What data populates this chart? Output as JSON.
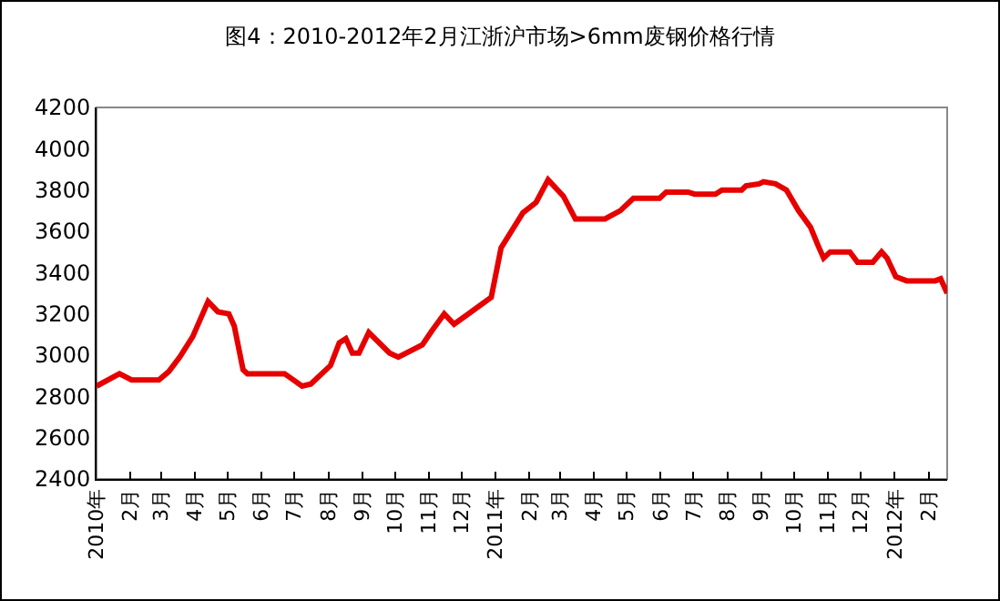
{
  "chart_data": {
    "type": "line",
    "title": "图4：2010-2012年2月江浙沪市场>6mm废钢价格行情",
    "x": [
      "2010-01-01",
      "2010-01-22",
      "2010-02-02",
      "2010-02-27",
      "2010-03-08",
      "2010-03-18",
      "2010-03-30",
      "2010-04-13",
      "2010-04-22",
      "2010-05-02",
      "2010-05-07",
      "2010-05-15",
      "2010-05-19",
      "2010-06-22",
      "2010-07-08",
      "2010-07-16",
      "2010-08-03",
      "2010-08-11",
      "2010-08-17",
      "2010-08-23",
      "2010-08-29",
      "2010-09-07",
      "2010-09-26",
      "2010-10-04",
      "2010-10-26",
      "2010-11-04",
      "2010-11-15",
      "2010-11-24",
      "2010-12-28",
      "2011-01-06",
      "2011-01-26",
      "2011-02-07",
      "2011-02-18",
      "2011-03-04",
      "2011-03-15",
      "2011-04-11",
      "2011-04-25",
      "2011-05-07",
      "2011-05-31",
      "2011-06-06",
      "2011-06-26",
      "2011-07-02",
      "2011-07-21",
      "2011-07-27",
      "2011-08-14",
      "2011-08-18",
      "2011-08-30",
      "2011-09-03",
      "2011-09-14",
      "2011-09-24",
      "2011-10-05",
      "2011-10-16",
      "2011-10-23",
      "2011-10-28",
      "2011-11-03",
      "2011-11-21",
      "2011-11-28",
      "2011-12-12",
      "2011-12-20",
      "2011-12-25",
      "2012-01-02",
      "2012-01-12",
      "2012-02-07",
      "2012-02-12",
      "2012-02-18"
    ],
    "series": [
      {
        "color": "#e60000",
        "values": [
          2850,
          2910,
          2880,
          2880,
          2920,
          2990,
          3090,
          3260,
          3210,
          3200,
          3140,
          2930,
          2910,
          2910,
          2850,
          2860,
          2950,
          3060,
          3080,
          3010,
          3010,
          3110,
          3010,
          2990,
          3050,
          3120,
          3200,
          3150,
          3280,
          3520,
          3690,
          3740,
          3850,
          3770,
          3660,
          3660,
          3700,
          3760,
          3760,
          3790,
          3790,
          3780,
          3780,
          3800,
          3800,
          3820,
          3830,
          3840,
          3830,
          3800,
          3700,
          3620,
          3530,
          3470,
          3500,
          3500,
          3450,
          3450,
          3500,
          3470,
          3380,
          3360,
          3360,
          3370,
          3300
        ]
      }
    ],
    "xlim": [
      "2010-01-01",
      "2012-02-18"
    ],
    "xticks": [
      {
        "value": "2010-01",
        "label": "2010年"
      },
      {
        "value": "2010-02",
        "label": "2月"
      },
      {
        "value": "2010-03",
        "label": "3月"
      },
      {
        "value": "2010-04",
        "label": "4月"
      },
      {
        "value": "2010-05",
        "label": "5月"
      },
      {
        "value": "2010-06",
        "label": "6月"
      },
      {
        "value": "2010-07",
        "label": "7月"
      },
      {
        "value": "2010-08",
        "label": "8月"
      },
      {
        "value": "2010-09",
        "label": "9月"
      },
      {
        "value": "2010-10",
        "label": "10月"
      },
      {
        "value": "2010-11",
        "label": "11月"
      },
      {
        "value": "2010-12",
        "label": "12月"
      },
      {
        "value": "2011-01",
        "label": "2011年"
      },
      {
        "value": "2011-02",
        "label": "2月"
      },
      {
        "value": "2011-03",
        "label": "3月"
      },
      {
        "value": "2011-04",
        "label": "4月"
      },
      {
        "value": "2011-05",
        "label": "5月"
      },
      {
        "value": "2011-06",
        "label": "6月"
      },
      {
        "value": "2011-07",
        "label": "7月"
      },
      {
        "value": "2011-08",
        "label": "8月"
      },
      {
        "value": "2011-09",
        "label": "9月"
      },
      {
        "value": "2011-10",
        "label": "10月"
      },
      {
        "value": "2011-11",
        "label": "11月"
      },
      {
        "value": "2011-12",
        "label": "12月"
      },
      {
        "value": "2012-01",
        "label": "2012年"
      },
      {
        "value": "2012-02",
        "label": "2月"
      }
    ],
    "ylim": [
      2400,
      4200
    ],
    "yticks": [
      2400,
      2600,
      2800,
      3000,
      3200,
      3400,
      3600,
      3800,
      4000,
      4200
    ],
    "grid": false,
    "marker": "none",
    "line_style": "solid"
  }
}
